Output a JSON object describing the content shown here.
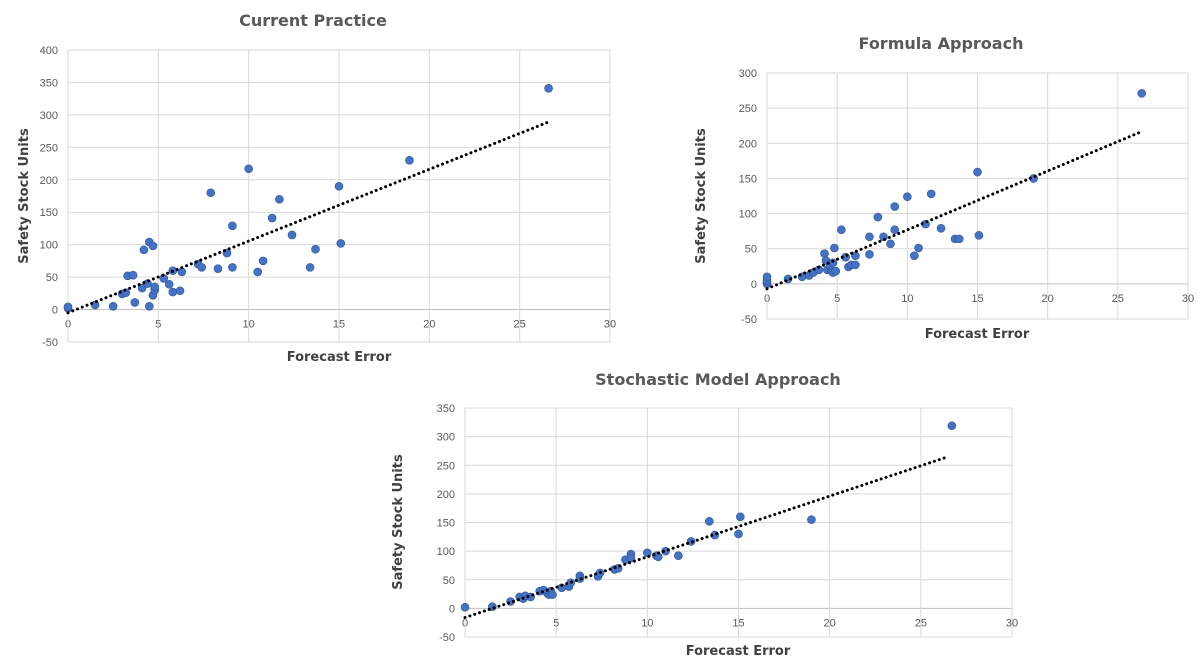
{
  "chart_data": [
    {
      "type": "scatter",
      "title": "Current Practice",
      "xlabel": "Forecast Error",
      "ylabel": "Safety Stock Units",
      "xlim": [
        0,
        30
      ],
      "ylim": [
        -50,
        400
      ],
      "x_ticks": [
        "0",
        "5",
        "10",
        "15",
        "20",
        "25",
        "30"
      ],
      "y_ticks": [
        "400",
        "350",
        "300",
        "250",
        "200",
        "150",
        "100",
        "50",
        "0",
        "-50"
      ],
      "grid": true,
      "marker_color": "#4472C4",
      "trendline": {
        "style": "dotted-linear",
        "color": "#000000",
        "from": [
          0,
          -5
        ],
        "to": [
          26.5,
          288
        ]
      },
      "points": [
        [
          0,
          2
        ],
        [
          0,
          4
        ],
        [
          1.5,
          7
        ],
        [
          2.5,
          5
        ],
        [
          3,
          24
        ],
        [
          3.2,
          26
        ],
        [
          3.3,
          52
        ],
        [
          3.6,
          53
        ],
        [
          3.7,
          11
        ],
        [
          4.1,
          33
        ],
        [
          4.2,
          92
        ],
        [
          4.4,
          40
        ],
        [
          4.5,
          104
        ],
        [
          4.5,
          5
        ],
        [
          4.7,
          98
        ],
        [
          4.7,
          22
        ],
        [
          4.8,
          30
        ],
        [
          4.8,
          35
        ],
        [
          5.3,
          48
        ],
        [
          5.6,
          39
        ],
        [
          5.8,
          60
        ],
        [
          5.8,
          27
        ],
        [
          6.2,
          29
        ],
        [
          6.3,
          58
        ],
        [
          7.2,
          70
        ],
        [
          7.4,
          65
        ],
        [
          7.9,
          180
        ],
        [
          8.3,
          63
        ],
        [
          8.8,
          87
        ],
        [
          9.1,
          129
        ],
        [
          9.1,
          65
        ],
        [
          10,
          217
        ],
        [
          10.5,
          58
        ],
        [
          10.8,
          75
        ],
        [
          11.3,
          141
        ],
        [
          11.7,
          170
        ],
        [
          12.4,
          115
        ],
        [
          13.4,
          65
        ],
        [
          13.7,
          93
        ],
        [
          15,
          190
        ],
        [
          15.1,
          102
        ],
        [
          18.9,
          230
        ],
        [
          26.6,
          341
        ]
      ]
    },
    {
      "type": "scatter",
      "title": "Formula Approach",
      "xlabel": "Forecast Error",
      "ylabel": "Safety Stock Units",
      "xlim": [
        0,
        30
      ],
      "ylim": [
        -50,
        300
      ],
      "x_ticks": [
        "0",
        "5",
        "10",
        "15",
        "20",
        "25",
        "30"
      ],
      "y_ticks": [
        "300",
        "250",
        "200",
        "150",
        "100",
        "50",
        "0",
        "-50"
      ],
      "grid": true,
      "marker_color": "#4472C4",
      "trendline": {
        "style": "dotted-linear",
        "color": "#000000",
        "from": [
          0,
          -7
        ],
        "to": [
          26.5,
          215
        ]
      },
      "points": [
        [
          0,
          0
        ],
        [
          0,
          3
        ],
        [
          0,
          5
        ],
        [
          0,
          10
        ],
        [
          1.5,
          7
        ],
        [
          2.5,
          10
        ],
        [
          3,
          12
        ],
        [
          3.3,
          16
        ],
        [
          3.7,
          20
        ],
        [
          4.1,
          43
        ],
        [
          4.2,
          33
        ],
        [
          4.3,
          20
        ],
        [
          4.5,
          25
        ],
        [
          4.6,
          19
        ],
        [
          4.7,
          16
        ],
        [
          4.7,
          30
        ],
        [
          4.8,
          51
        ],
        [
          4.9,
          18
        ],
        [
          5.3,
          77
        ],
        [
          5.6,
          38
        ],
        [
          5.8,
          24
        ],
        [
          6,
          27
        ],
        [
          6.3,
          40
        ],
        [
          6.3,
          27
        ],
        [
          7.3,
          67
        ],
        [
          7.3,
          42
        ],
        [
          7.9,
          95
        ],
        [
          8.3,
          67
        ],
        [
          8.8,
          57
        ],
        [
          9.1,
          110
        ],
        [
          9.1,
          77
        ],
        [
          10,
          124
        ],
        [
          10.5,
          40
        ],
        [
          10.8,
          51
        ],
        [
          11.3,
          85
        ],
        [
          11.7,
          128
        ],
        [
          12.4,
          79
        ],
        [
          13.4,
          64
        ],
        [
          13.7,
          64
        ],
        [
          15,
          159
        ],
        [
          15.1,
          69
        ],
        [
          19,
          150
        ],
        [
          26.7,
          271
        ]
      ]
    },
    {
      "type": "scatter",
      "title": "Stochastic Model Approach",
      "xlabel": "Forecast Error",
      "ylabel": "Safety Stock Units",
      "xlim": [
        0,
        30
      ],
      "ylim": [
        -50,
        350
      ],
      "x_ticks": [
        "0",
        "5",
        "10",
        "15",
        "20",
        "25",
        "30"
      ],
      "y_ticks": [
        "350",
        "300",
        "250",
        "200",
        "150",
        "100",
        "50",
        "0",
        "-50"
      ],
      "grid": true,
      "marker_color": "#4472C4",
      "trendline": {
        "style": "dotted-linear",
        "color": "#000000",
        "from": [
          0,
          -16
        ],
        "to": [
          26.5,
          265
        ]
      },
      "points": [
        [
          0,
          2
        ],
        [
          1.5,
          3
        ],
        [
          2.5,
          12
        ],
        [
          3,
          20
        ],
        [
          3.2,
          17
        ],
        [
          3.3,
          22
        ],
        [
          3.6,
          20
        ],
        [
          4.1,
          30
        ],
        [
          4.3,
          32
        ],
        [
          4.5,
          27
        ],
        [
          4.6,
          24
        ],
        [
          4.7,
          30
        ],
        [
          4.8,
          24
        ],
        [
          5.3,
          36
        ],
        [
          5.7,
          38
        ],
        [
          5.8,
          45
        ],
        [
          6.3,
          57
        ],
        [
          6.3,
          52
        ],
        [
          7.3,
          56
        ],
        [
          7.4,
          62
        ],
        [
          8.2,
          68
        ],
        [
          8.4,
          70
        ],
        [
          8.8,
          85
        ],
        [
          9.1,
          95
        ],
        [
          9.1,
          88
        ],
        [
          10,
          97
        ],
        [
          10.5,
          92
        ],
        [
          10.6,
          90
        ],
        [
          11,
          100
        ],
        [
          11.7,
          92
        ],
        [
          12.4,
          117
        ],
        [
          13.4,
          152
        ],
        [
          13.7,
          128
        ],
        [
          15,
          130
        ],
        [
          15.1,
          160
        ],
        [
          19,
          155
        ],
        [
          26.7,
          319
        ]
      ]
    }
  ]
}
